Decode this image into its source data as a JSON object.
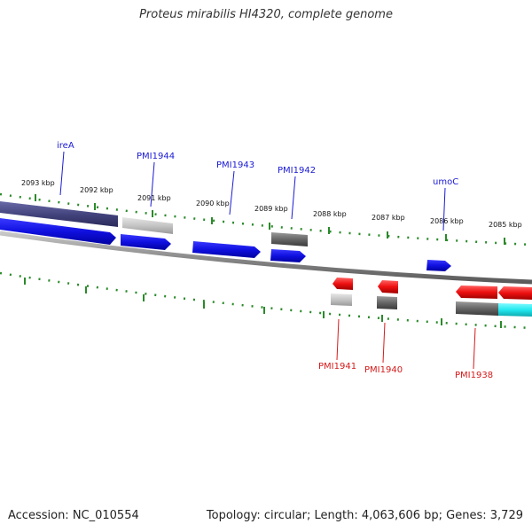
{
  "title": "Proteus mirabilis HI4320, complete genome",
  "footer": {
    "accession": "Accession: NC_010554",
    "summary": "Topology: circular; Length: 4,063,606 bp; Genes: 3,729"
  },
  "colors": {
    "forward_cds": "#1414e6",
    "reverse_cds": "#e61414",
    "label_forward": "#1a1ad6",
    "label_reverse": "#d61a1a",
    "backbone": "#8c8c8c",
    "tick": "#2a8a2a",
    "purple_feature": "#4a4a8c",
    "light_gray": "#c8c8c8",
    "dark_gray": "#6a6a6a",
    "cyan": "#29e6e6"
  },
  "scale_labels": [
    "2093 kbp",
    "2092 kbp",
    "2091 kbp",
    "2090 kbp",
    "2089 kbp",
    "2088 kbp",
    "2087 kbp",
    "2086 kbp",
    "2085 kbp"
  ],
  "forward_gene_labels": [
    "ireA",
    "PMI1944",
    "PMI1943",
    "PMI1942",
    "umoC"
  ],
  "reverse_gene_labels": [
    "PMI1941",
    "PMI1940",
    "PMI1938"
  ]
}
